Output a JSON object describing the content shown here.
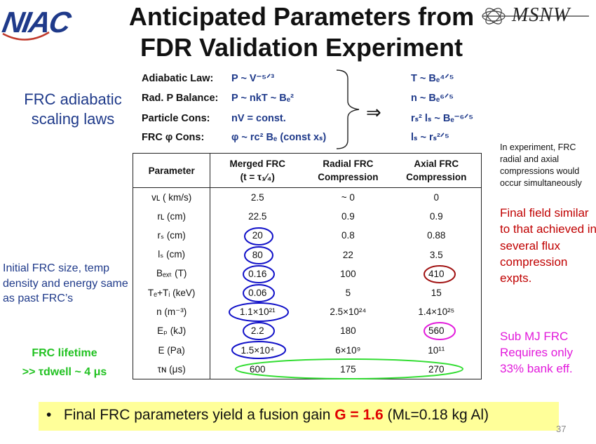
{
  "header": {
    "logo_text": "NIAC",
    "title_line1": "Anticipated Parameters from",
    "title_line2": "FDR Validation Experiment",
    "partner_logo_text": "MSNW"
  },
  "scaling_label": "FRC adiabatic scaling laws",
  "laws": [
    {
      "name": "Adiabatic Law:",
      "eq": "P ~ V⁻⁵ᐟ³"
    },
    {
      "name": "Rad. P Balance:",
      "eq": "P ~ nkT ~ Bₑ²"
    },
    {
      "name": "Particle Cons:",
      "eq": "nV = const."
    },
    {
      "name": "FRC φ Cons:",
      "eq": "φ ~ rᴄ² Bₑ (const xₛ)"
    }
  ],
  "results": [
    "T ~ Bₑ⁴ᐟ⁵",
    "n ~ Bₑ⁶ᐟ⁵",
    "rₛ² lₛ ~ Bₑ⁻⁶ᐟ⁵",
    "lₛ ~ rₛ²ᐟ⁵"
  ],
  "arrow_symbol": "⇒",
  "table": {
    "headers": [
      "Parameter",
      "Merged FRC (t = τ₁⁄₄)",
      "Radial FRC Compression",
      "Axial FRC Compression"
    ],
    "header_lines": [
      [
        "Parameter",
        ""
      ],
      [
        "Merged FRC",
        "(t = τ₁⁄₄)"
      ],
      [
        "Radial FRC",
        "Compression"
      ],
      [
        "Axial FRC",
        "Compression"
      ]
    ],
    "rows": [
      [
        "vʟ ( km/s)",
        "2.5",
        "~ 0",
        "0"
      ],
      [
        "rʟ (cm)",
        "22.5",
        "0.9",
        "0.9"
      ],
      [
        "rₛ (cm)",
        "20",
        "0.8",
        "0.88"
      ],
      [
        "lₛ (cm)",
        "80",
        "22",
        "3.5"
      ],
      [
        "Bₑₓₜ (T)",
        "0.16",
        "100",
        "410"
      ],
      [
        "Tₑ+Tᵢ (keV)",
        "0.06",
        "5",
        "15"
      ],
      [
        "n (m⁻³)",
        "1.1×10²¹",
        "2.5×10²⁴",
        "1.4×10²⁵"
      ],
      [
        "Eₚ (kJ)",
        "2.2",
        "180",
        "560"
      ],
      [
        "E (Pa)",
        "1.5×10⁴",
        "6×10⁹",
        "10¹¹"
      ],
      [
        "τɴ (μs)",
        "600",
        "175",
        "270"
      ]
    ]
  },
  "side_note": "In experiment, FRC radial and axial compressions would occur simultaneously",
  "final_field_note": "Final field similar to that achieved in several flux compression expts.",
  "sub_mj_note": "Sub MJ FRC Requires only 33% bank eff.",
  "initial_note": "Initial FRC size, temp density and energy same as past FRC’s",
  "lifetime_note_line1": "FRC lifetime",
  "lifetime_note_line2": ">> τdwell ~ 4 μs",
  "bottom": {
    "bullet": "•",
    "text_before": "Final FRC parameters yield a fusion gain",
    "gain": "G = 1.6",
    "text_after": "(Mʟ=0.18 kg Al)"
  },
  "page_number": "37",
  "colors": {
    "blue_text": "#1f3a8a",
    "red_text": "#c00000",
    "magenta_text": "#e21adb",
    "green_text": "#22c222",
    "highlight": "#ffff99",
    "circle_blue": "#1010c8",
    "circle_red": "#a01010",
    "circle_magenta": "#e21adb",
    "ellipse_green": "#33dd33"
  }
}
